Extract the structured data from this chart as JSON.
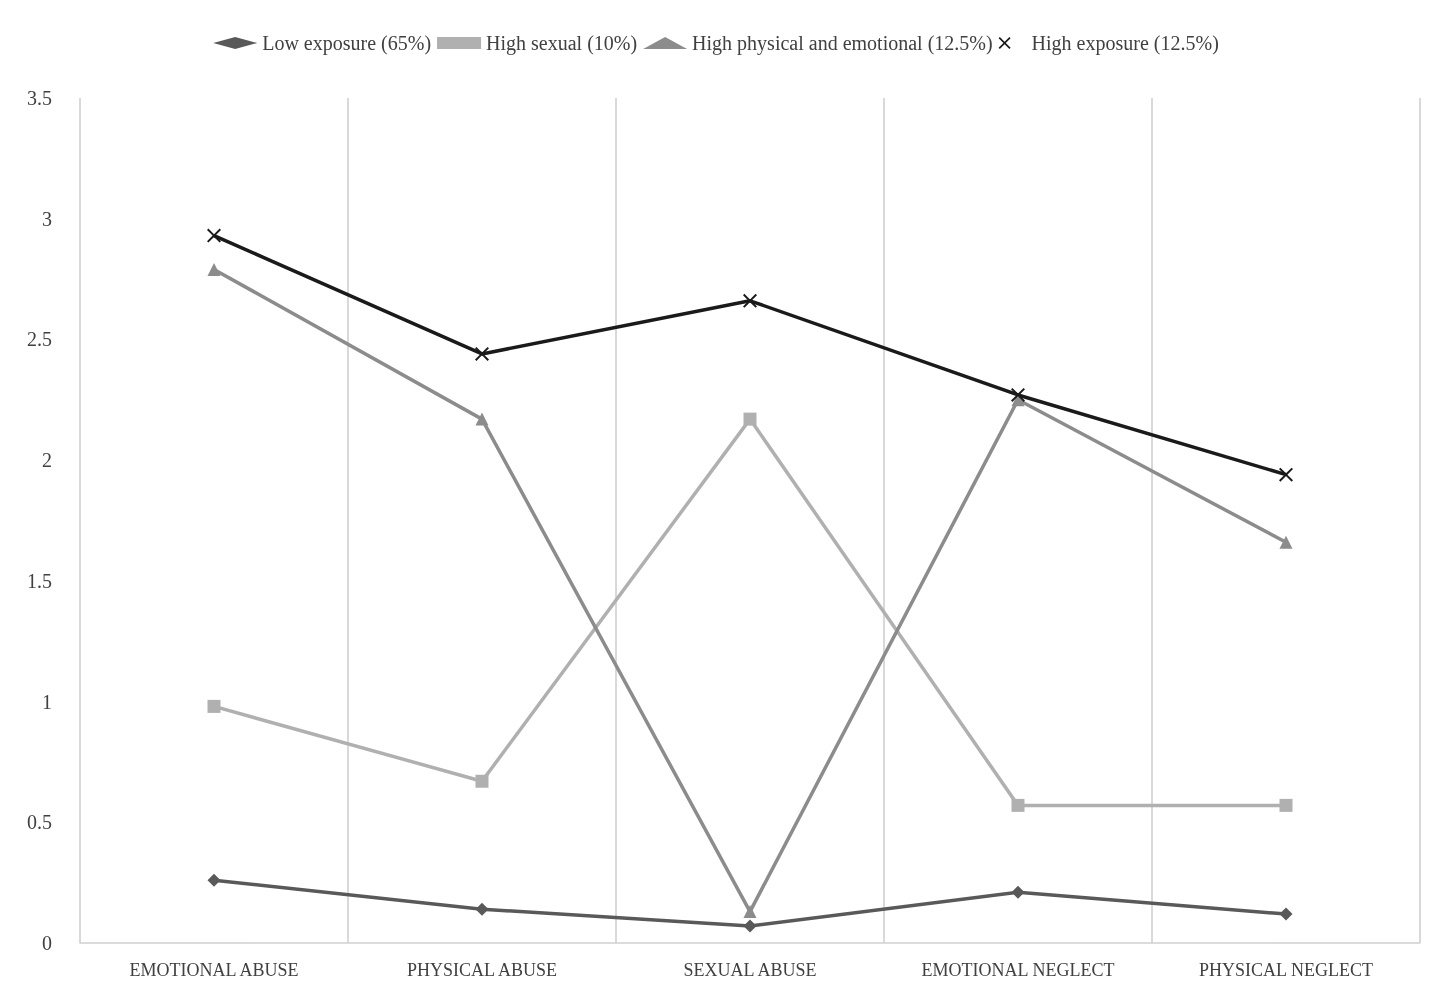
{
  "chart_data": {
    "type": "line",
    "categories": [
      "EMOTIONAL ABUSE",
      "PHYSICAL ABUSE",
      "SEXUAL ABUSE",
      "EMOTIONAL NEGLECT",
      "PHYSICAL NEGLECT"
    ],
    "ylim": [
      0,
      3.5
    ],
    "yticks": [
      0,
      0.5,
      1,
      1.5,
      2,
      2.5,
      3,
      3.5
    ],
    "grid": "x",
    "legend": "top",
    "series": [
      {
        "name": "Low exposure (65%)",
        "color": "#595959",
        "marker": "diamond",
        "values": [
          0.26,
          0.14,
          0.07,
          0.21,
          0.12
        ]
      },
      {
        "name": "High sexual (10%)",
        "color": "#b0b0b0",
        "marker": "square",
        "values": [
          0.98,
          0.67,
          2.17,
          0.57,
          0.57
        ]
      },
      {
        "name": "High physical and emotional (12.5%)",
        "color": "#8c8c8c",
        "marker": "triangle",
        "values": [
          2.79,
          2.17,
          0.13,
          2.25,
          1.66
        ]
      },
      {
        "name": "High exposure (12.5%)",
        "color": "#1a1a1a",
        "marker": "cross",
        "values": [
          2.93,
          2.44,
          2.66,
          2.27,
          1.94
        ]
      }
    ]
  }
}
